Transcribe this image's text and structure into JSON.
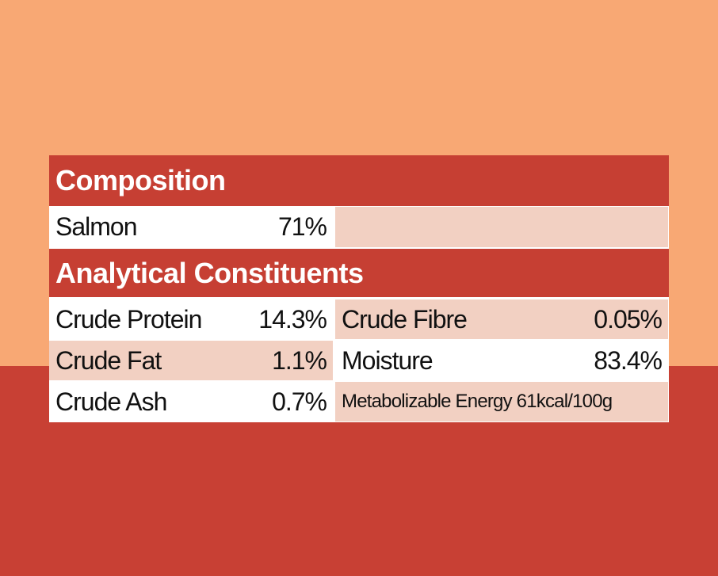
{
  "composition": {
    "title": "Composition",
    "rows": [
      {
        "label": "Salmon",
        "value": "71%"
      }
    ]
  },
  "analytical": {
    "title": "Analytical Constituents",
    "rows": [
      [
        {
          "label": "Crude Protein",
          "value": "14.3%"
        },
        {
          "label": "Crude Fibre",
          "value": "0.05%"
        }
      ],
      [
        {
          "label": "Crude Fat",
          "value": "1.1%"
        },
        {
          "label": "Moisture",
          "value": "83.4%"
        }
      ],
      [
        {
          "label": "Crude Ash",
          "value": "0.7%"
        },
        {
          "text": "Metabolizable Energy 61kcal/100g"
        }
      ]
    ]
  }
}
